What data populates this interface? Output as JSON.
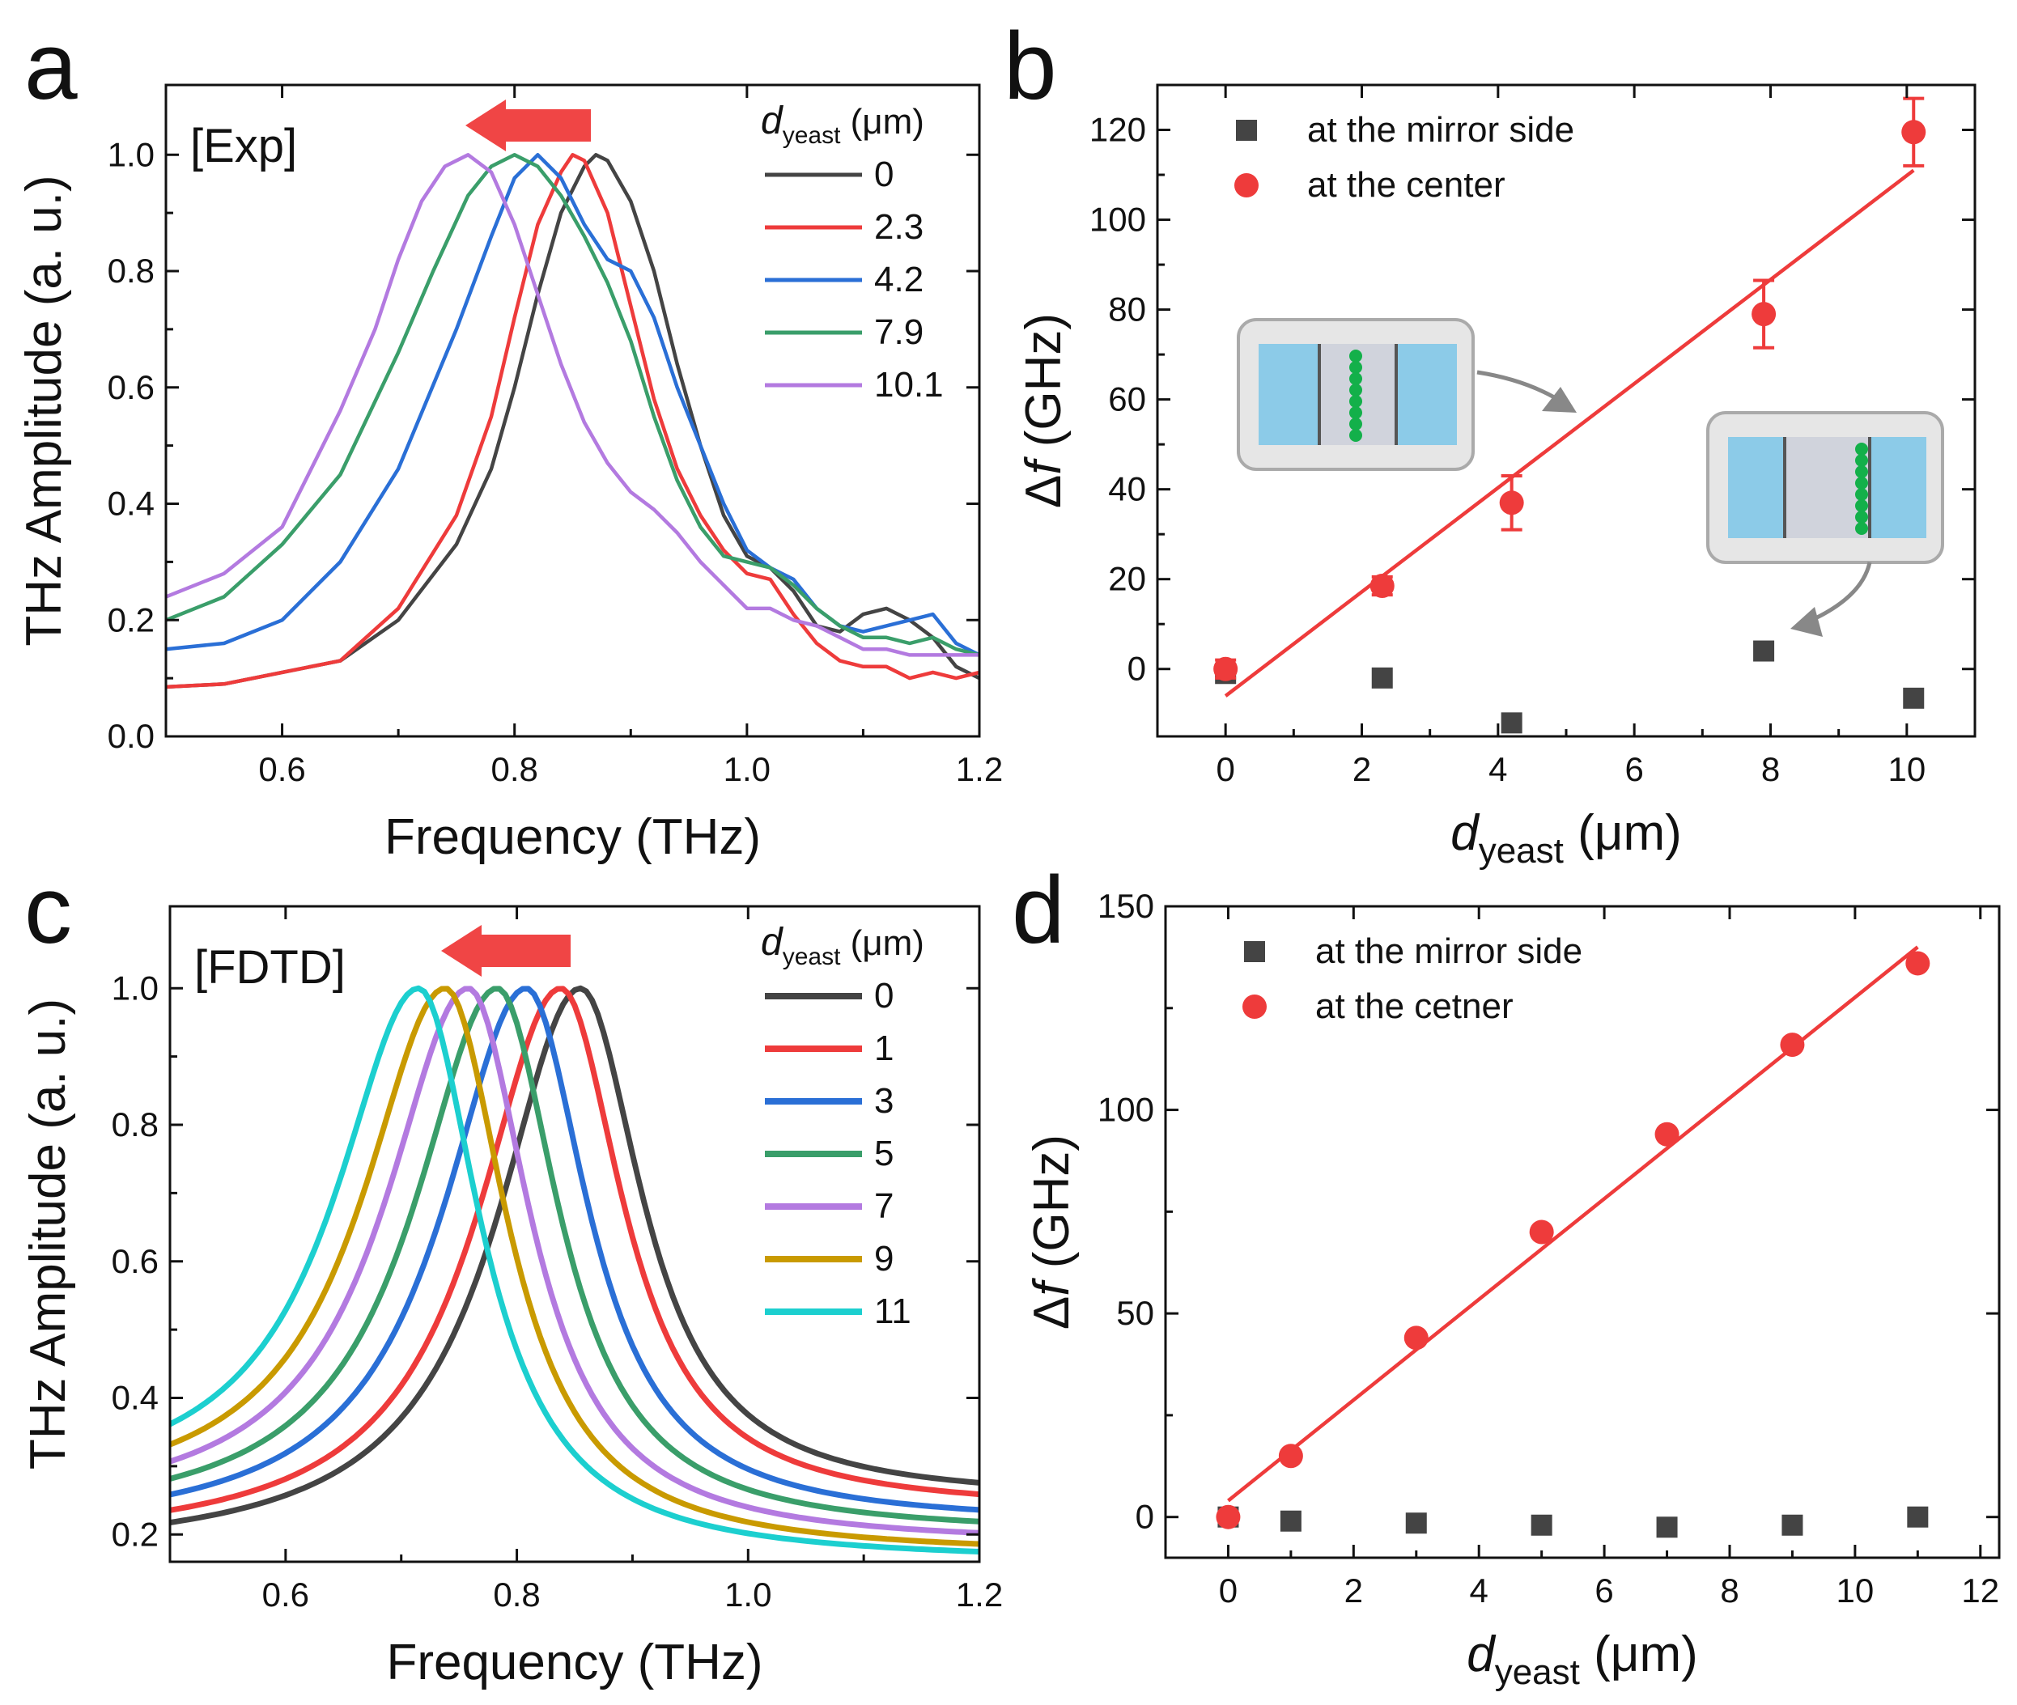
{
  "colors": {
    "black": "#444444",
    "red": "#ee3b3b",
    "blue": "#2a6fd6",
    "green": "#3a9e6a",
    "purple": "#b37ae0",
    "gold": "#c99a00",
    "cyan": "#1ccfcf",
    "arrow": "#f04545",
    "cell_green": "#13b04a",
    "substrate_blue": "#8ccbe8",
    "inset_bg": "#e6e6e6",
    "gap_grey": "#d0d3dc"
  },
  "chart_data": [
    {
      "panel": "a",
      "type": "line",
      "tag": "[Exp]",
      "xlabel": "Frequency (THz)",
      "ylabel": "THz Amplitude (a. u.)",
      "xlim": [
        0.5,
        1.2
      ],
      "ylim": [
        0.0,
        1.12
      ],
      "xticks": [
        0.6,
        0.8,
        1.0,
        1.2
      ],
      "yticks": [
        0.0,
        0.2,
        0.4,
        0.6,
        0.8,
        1.0
      ],
      "xtick_labels": [
        "0.6",
        "0.8",
        "1.0",
        "1.2"
      ],
      "ytick_labels": [
        "0.0",
        "0.2",
        "0.4",
        "0.6",
        "0.8",
        "1.0"
      ],
      "legend_title_main": "d",
      "legend_title_sub": "yeast",
      "legend_title_unit": " (μm)",
      "series": [
        {
          "name": "0",
          "color": "black",
          "x": [
            0.5,
            0.55,
            0.6,
            0.65,
            0.7,
            0.75,
            0.78,
            0.8,
            0.82,
            0.84,
            0.86,
            0.87,
            0.88,
            0.9,
            0.92,
            0.94,
            0.96,
            0.98,
            1.0,
            1.02,
            1.04,
            1.06,
            1.08,
            1.1,
            1.12,
            1.14,
            1.16,
            1.18,
            1.2
          ],
          "y": [
            0.085,
            0.09,
            0.11,
            0.13,
            0.2,
            0.33,
            0.46,
            0.6,
            0.76,
            0.9,
            0.98,
            1.0,
            0.99,
            0.92,
            0.8,
            0.64,
            0.5,
            0.38,
            0.31,
            0.29,
            0.25,
            0.19,
            0.18,
            0.21,
            0.22,
            0.2,
            0.17,
            0.12,
            0.1
          ]
        },
        {
          "name": "2.3",
          "color": "red",
          "x": [
            0.5,
            0.55,
            0.6,
            0.65,
            0.7,
            0.75,
            0.78,
            0.8,
            0.82,
            0.84,
            0.85,
            0.86,
            0.88,
            0.9,
            0.92,
            0.94,
            0.96,
            0.98,
            1.0,
            1.02,
            1.04,
            1.06,
            1.08,
            1.1,
            1.12,
            1.14,
            1.16,
            1.18,
            1.2
          ],
          "y": [
            0.085,
            0.09,
            0.11,
            0.13,
            0.22,
            0.38,
            0.55,
            0.72,
            0.88,
            0.97,
            1.0,
            0.99,
            0.9,
            0.74,
            0.58,
            0.46,
            0.38,
            0.32,
            0.28,
            0.27,
            0.21,
            0.16,
            0.13,
            0.12,
            0.12,
            0.1,
            0.11,
            0.1,
            0.11
          ]
        },
        {
          "name": "4.2",
          "color": "blue",
          "x": [
            0.5,
            0.55,
            0.6,
            0.65,
            0.7,
            0.75,
            0.78,
            0.8,
            0.82,
            0.84,
            0.86,
            0.88,
            0.9,
            0.92,
            0.94,
            0.96,
            0.98,
            1.0,
            1.02,
            1.04,
            1.06,
            1.08,
            1.1,
            1.12,
            1.14,
            1.16,
            1.18,
            1.2
          ],
          "y": [
            0.15,
            0.16,
            0.2,
            0.3,
            0.46,
            0.7,
            0.86,
            0.96,
            1.0,
            0.96,
            0.88,
            0.82,
            0.8,
            0.72,
            0.6,
            0.5,
            0.4,
            0.32,
            0.29,
            0.27,
            0.22,
            0.19,
            0.18,
            0.19,
            0.2,
            0.21,
            0.16,
            0.14
          ]
        },
        {
          "name": "7.9",
          "color": "green",
          "x": [
            0.5,
            0.55,
            0.6,
            0.65,
            0.7,
            0.73,
            0.76,
            0.78,
            0.8,
            0.82,
            0.84,
            0.86,
            0.88,
            0.9,
            0.92,
            0.94,
            0.96,
            0.98,
            1.0,
            1.02,
            1.04,
            1.06,
            1.08,
            1.1,
            1.12,
            1.14,
            1.16,
            1.18,
            1.2
          ],
          "y": [
            0.2,
            0.24,
            0.33,
            0.45,
            0.66,
            0.8,
            0.93,
            0.98,
            1.0,
            0.98,
            0.93,
            0.86,
            0.78,
            0.68,
            0.55,
            0.44,
            0.36,
            0.31,
            0.3,
            0.29,
            0.26,
            0.22,
            0.19,
            0.17,
            0.17,
            0.16,
            0.17,
            0.15,
            0.14
          ]
        },
        {
          "name": "10.1",
          "color": "purple",
          "x": [
            0.5,
            0.55,
            0.6,
            0.65,
            0.68,
            0.7,
            0.72,
            0.74,
            0.76,
            0.78,
            0.8,
            0.82,
            0.84,
            0.86,
            0.88,
            0.9,
            0.92,
            0.94,
            0.96,
            0.98,
            1.0,
            1.02,
            1.04,
            1.06,
            1.08,
            1.1,
            1.12,
            1.14,
            1.16,
            1.18,
            1.2
          ],
          "y": [
            0.24,
            0.28,
            0.36,
            0.56,
            0.7,
            0.82,
            0.92,
            0.98,
            1.0,
            0.97,
            0.88,
            0.76,
            0.64,
            0.54,
            0.47,
            0.42,
            0.39,
            0.35,
            0.3,
            0.26,
            0.22,
            0.22,
            0.2,
            0.19,
            0.17,
            0.15,
            0.15,
            0.14,
            0.14,
            0.14,
            0.14
          ]
        }
      ]
    },
    {
      "panel": "b",
      "type": "scatter",
      "xlabel_main": "d",
      "xlabel_sub": "yeast",
      "xlabel_unit": " (μm)",
      "ylabel_prefix": "Δ",
      "ylabel_var": "f",
      "ylabel_unit": " (GHz)",
      "xlim": [
        -1,
        11
      ],
      "ylim": [
        -15,
        130
      ],
      "xticks": [
        0,
        2,
        4,
        6,
        8,
        10
      ],
      "yticks": [
        0,
        20,
        40,
        60,
        80,
        100,
        120
      ],
      "xtick_labels": [
        "0",
        "2",
        "4",
        "6",
        "8",
        "10"
      ],
      "ytick_labels": [
        "0",
        "20",
        "40",
        "60",
        "80",
        "100",
        "120"
      ],
      "series": [
        {
          "name": "at the mirror side",
          "marker": "square",
          "color": "black",
          "x": [
            0,
            2.3,
            4.2,
            7.9,
            10.1
          ],
          "y": [
            -1,
            -2,
            -12,
            4,
            -6.5
          ]
        },
        {
          "name": "at the center",
          "marker": "circle",
          "color": "red",
          "x": [
            0,
            2.3,
            4.2,
            7.9,
            10.1
          ],
          "y": [
            0,
            18.5,
            37,
            79,
            119.5
          ],
          "yerr": [
            2,
            2,
            6,
            7.5,
            7.5
          ]
        }
      ],
      "fit": {
        "x": [
          0,
          10.1
        ],
        "y": [
          -6,
          111
        ]
      }
    },
    {
      "panel": "c",
      "type": "line",
      "tag": "[FDTD]",
      "xlabel": "Frequency (THz)",
      "ylabel": "THz Amplitude (a. u.)",
      "xlim": [
        0.5,
        1.2
      ],
      "ylim": [
        0.16,
        1.12
      ],
      "xticks": [
        0.6,
        0.8,
        1.0,
        1.2
      ],
      "yticks": [
        0.2,
        0.4,
        0.6,
        0.8,
        1.0
      ],
      "xtick_labels": [
        "0.6",
        "0.8",
        "1.0",
        "1.2"
      ],
      "ytick_labels": [
        "0.2",
        "0.4",
        "0.6",
        "0.8",
        "1.0"
      ],
      "legend_title_main": "d",
      "legend_title_sub": "yeast",
      "legend_title_unit": " (μm)",
      "lorentz": {
        "wl": 0.175,
        "wr": 0.13,
        "baseline": 0.17
      },
      "series": [
        {
          "name": "0",
          "color": "black",
          "peak": 0.855,
          "tail": 0.27
        },
        {
          "name": "1",
          "color": "red",
          "peak": 0.838,
          "tail": 0.255
        },
        {
          "name": "3",
          "color": "blue",
          "peak": 0.808,
          "tail": 0.235
        },
        {
          "name": "5",
          "color": "green",
          "peak": 0.783,
          "tail": 0.22
        },
        {
          "name": "7",
          "color": "purple",
          "peak": 0.758,
          "tail": 0.205
        },
        {
          "name": "9",
          "color": "gold",
          "peak": 0.738,
          "tail": 0.19
        },
        {
          "name": "11",
          "color": "cyan",
          "peak": 0.715,
          "tail": 0.18
        }
      ]
    },
    {
      "panel": "d",
      "type": "scatter",
      "xlabel_main": "d",
      "xlabel_sub": "yeast",
      "xlabel_unit": " (μm)",
      "ylabel_prefix": "Δ",
      "ylabel_var": "f",
      "ylabel_unit": " (GHz)",
      "xlim": [
        -1,
        12.3
      ],
      "ylim": [
        -10,
        150
      ],
      "xticks": [
        0,
        2,
        4,
        6,
        8,
        10,
        12
      ],
      "yticks": [
        0,
        50,
        100,
        150
      ],
      "xtick_labels": [
        "0",
        "2",
        "4",
        "6",
        "8",
        "10",
        "12"
      ],
      "ytick_labels": [
        "0",
        "50",
        "100",
        "150"
      ],
      "series": [
        {
          "name": "at the mirror side",
          "marker": "square",
          "color": "black",
          "x": [
            0,
            1,
            3,
            5,
            7,
            9,
            11
          ],
          "y": [
            0,
            -1,
            -1.5,
            -2,
            -2.5,
            -2,
            0
          ]
        },
        {
          "name": "at the cetner",
          "marker": "circle",
          "color": "red",
          "x": [
            0,
            1,
            3,
            5,
            7,
            9,
            11
          ],
          "y": [
            0,
            15,
            44,
            70,
            94,
            116,
            136
          ]
        }
      ],
      "fit": {
        "x": [
          0,
          11
        ],
        "y": [
          4,
          140
        ]
      }
    }
  ]
}
